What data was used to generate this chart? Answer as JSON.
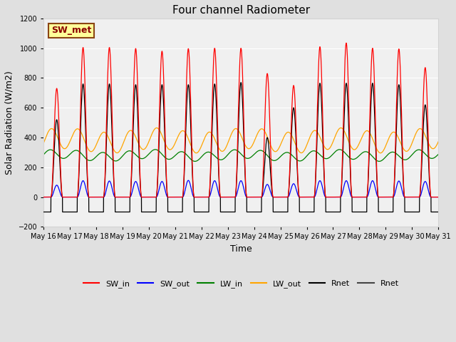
{
  "title": "Four channel Radiometer",
  "xlabel": "Time",
  "ylabel": "Solar Radiation (W/m2)",
  "ylim": [
    -200,
    1200
  ],
  "x_tick_labels": [
    "May 16",
    "May 17",
    "May 18",
    "May 19",
    "May 20",
    "May 21",
    "May 22",
    "May 23",
    "May 24",
    "May 25",
    "May 26",
    "May 27",
    "May 28",
    "May 29",
    "May 30",
    "May 31"
  ],
  "annotation_text": "SW_met",
  "annotation_bbox_facecolor": "#FFFF99",
  "annotation_bbox_edgecolor": "#8B4513",
  "legend_labels": [
    "SW_in",
    "SW_out",
    "LW_in",
    "LW_out",
    "Rnet",
    "Rnet"
  ],
  "legend_colors": [
    "red",
    "blue",
    "green",
    "orange",
    "black",
    "#444444"
  ],
  "bg_color": "#E0E0E0",
  "plot_bg_color": "#F0F0F0",
  "grid_color": "white",
  "title_fontsize": 11,
  "axis_label_fontsize": 9,
  "tick_fontsize": 7,
  "n_days": 15,
  "peak_SW_in": [
    730,
    1005,
    1005,
    998,
    980,
    997,
    1000,
    1000,
    830,
    750,
    1010,
    1035,
    1000,
    995,
    870
  ],
  "peak_SW_out": [
    80,
    110,
    108,
    105,
    105,
    112,
    110,
    110,
    85,
    90,
    110,
    110,
    110,
    108,
    105
  ],
  "LW_in_base": 280,
  "LW_in_amplitude": 30,
  "LW_out_base": 380,
  "LW_out_amplitude": 70,
  "peak_Rnet": [
    520,
    760,
    760,
    755,
    755,
    755,
    760,
    770,
    400,
    600,
    765,
    765,
    765,
    755,
    620
  ],
  "night_Rnet": -100
}
